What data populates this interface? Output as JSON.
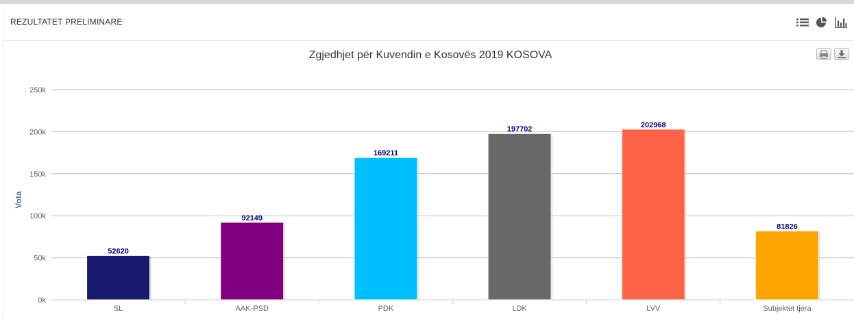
{
  "panel": {
    "title": "REZULTATET PRELIMINARE",
    "icons": [
      "list-icon",
      "pie-chart-icon",
      "bar-chart-icon"
    ]
  },
  "toolbar": {
    "icons": [
      "print-icon",
      "download-icon"
    ]
  },
  "colors": {
    "axis_title": "#4d759e",
    "label_text": "#000080",
    "grid": "#c0c0c0"
  },
  "chart_data": {
    "type": "bar",
    "title": "Zgjedhjet për Kuvendin e Kosovës 2019 KOSOVA",
    "xlabel": "",
    "ylabel": "Vota",
    "ylim": [
      0,
      250000
    ],
    "yticks": [
      0,
      50000,
      100000,
      150000,
      200000,
      250000
    ],
    "ytick_labels": [
      "0k",
      "50k",
      "100k",
      "150k",
      "200k",
      "250k"
    ],
    "grid": true,
    "categories": [
      "SL",
      "AAK-PSD",
      "PDK",
      "LDK",
      "LVV",
      "Subjektet tjera"
    ],
    "values": [
      52620,
      92149,
      169211,
      197702,
      202968,
      81826
    ],
    "colors": [
      "#191970",
      "#800080",
      "#00bfff",
      "#696969",
      "#ff6347",
      "#ffa500"
    ]
  }
}
